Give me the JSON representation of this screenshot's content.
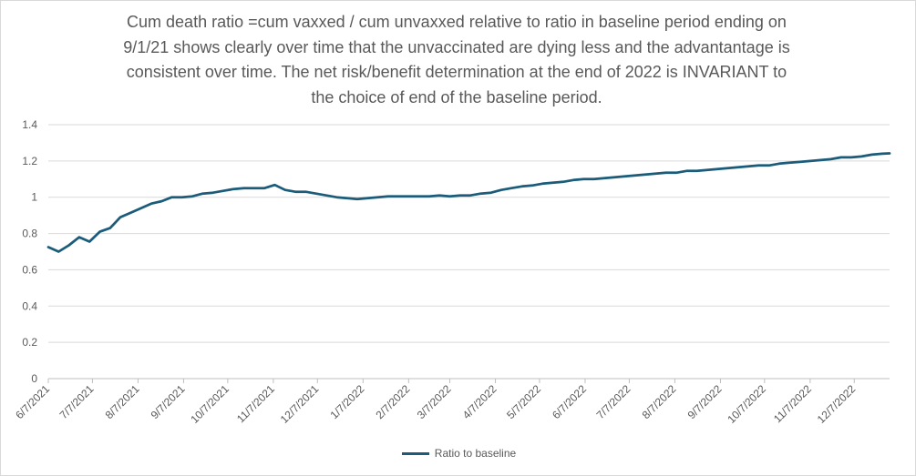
{
  "chart_data": {
    "type": "line",
    "title_lines": [
      "Cum death ratio =cum vaxxed / cum unvaxxed relative to ratio in baseline period ending on",
      "9/1/21 shows clearly over time that the unvaccinated are dying less and the advantantage is",
      "consistent over time. The net risk/benefit determination at the end of 2022 is INVARIANT to",
      "the choice of end of the baseline period."
    ],
    "xlabel": "",
    "ylabel": "",
    "ylim": [
      0,
      1.4
    ],
    "yticks": [
      "0",
      "0.2",
      "0.4",
      "0.6",
      "0.8",
      "1",
      "1.2",
      "1.4"
    ],
    "ytick_values": [
      0,
      0.2,
      0.4,
      0.6,
      0.8,
      1.0,
      1.2,
      1.4
    ],
    "x_tick_labels": [
      "6/7/2021",
      "7/7/2021",
      "8/7/2021",
      "9/7/2021",
      "10/7/2021",
      "11/7/2021",
      "12/7/2021",
      "1/7/2022",
      "2/7/2022",
      "3/7/2022",
      "4/7/2022",
      "5/7/2022",
      "6/7/2022",
      "7/7/2022",
      "8/7/2022",
      "9/7/2022",
      "10/7/2022",
      "11/7/2022",
      "12/7/2022"
    ],
    "x_tick_dates": [
      "2021-06-07",
      "2021-07-07",
      "2021-08-07",
      "2021-09-07",
      "2021-10-07",
      "2021-11-07",
      "2021-12-07",
      "2022-01-07",
      "2022-02-07",
      "2022-03-07",
      "2022-04-07",
      "2022-05-07",
      "2022-06-07",
      "2022-07-07",
      "2022-08-07",
      "2022-09-07",
      "2022-10-07",
      "2022-11-07",
      "2022-12-07"
    ],
    "x_range": [
      "2021-06-07",
      "2022-12-31"
    ],
    "grid": "horizontal",
    "legend_position": "bottom",
    "series": [
      {
        "name": "Ratio to baseline",
        "color": "#1a5c7a",
        "x": [
          "2021-06-07",
          "2021-06-14",
          "2021-06-21",
          "2021-06-28",
          "2021-07-05",
          "2021-07-12",
          "2021-07-19",
          "2021-07-26",
          "2021-08-02",
          "2021-08-09",
          "2021-08-16",
          "2021-08-23",
          "2021-08-30",
          "2021-09-06",
          "2021-09-13",
          "2021-09-20",
          "2021-09-27",
          "2021-10-04",
          "2021-10-11",
          "2021-10-18",
          "2021-10-25",
          "2021-11-01",
          "2021-11-08",
          "2021-11-15",
          "2021-11-22",
          "2021-11-29",
          "2021-12-06",
          "2021-12-13",
          "2021-12-20",
          "2021-12-27",
          "2022-01-03",
          "2022-01-10",
          "2022-01-17",
          "2022-01-24",
          "2022-01-31",
          "2022-02-07",
          "2022-02-14",
          "2022-02-21",
          "2022-02-28",
          "2022-03-07",
          "2022-03-14",
          "2022-03-21",
          "2022-03-28",
          "2022-04-04",
          "2022-04-11",
          "2022-04-18",
          "2022-04-25",
          "2022-05-02",
          "2022-05-09",
          "2022-05-16",
          "2022-05-23",
          "2022-05-30",
          "2022-06-06",
          "2022-06-13",
          "2022-06-20",
          "2022-06-27",
          "2022-07-04",
          "2022-07-11",
          "2022-07-18",
          "2022-07-25",
          "2022-08-01",
          "2022-08-08",
          "2022-08-15",
          "2022-08-22",
          "2022-08-29",
          "2022-09-05",
          "2022-09-12",
          "2022-09-19",
          "2022-09-26",
          "2022-10-03",
          "2022-10-10",
          "2022-10-17",
          "2022-10-24",
          "2022-10-31",
          "2022-11-07",
          "2022-11-14",
          "2022-11-21",
          "2022-11-28",
          "2022-12-05",
          "2022-12-12",
          "2022-12-19",
          "2022-12-26",
          "2022-12-31"
        ],
        "values": [
          0.725,
          0.7,
          0.735,
          0.78,
          0.755,
          0.81,
          0.83,
          0.89,
          0.915,
          0.94,
          0.965,
          0.978,
          1.0,
          1.0,
          1.005,
          1.02,
          1.025,
          1.035,
          1.045,
          1.05,
          1.05,
          1.05,
          1.068,
          1.04,
          1.03,
          1.03,
          1.02,
          1.01,
          1.0,
          0.995,
          0.99,
          0.995,
          1.0,
          1.005,
          1.005,
          1.005,
          1.005,
          1.005,
          1.01,
          1.005,
          1.01,
          1.01,
          1.02,
          1.025,
          1.04,
          1.05,
          1.06,
          1.065,
          1.075,
          1.08,
          1.085,
          1.095,
          1.1,
          1.1,
          1.105,
          1.11,
          1.115,
          1.12,
          1.125,
          1.13,
          1.135,
          1.135,
          1.145,
          1.145,
          1.15,
          1.155,
          1.16,
          1.165,
          1.17,
          1.175,
          1.175,
          1.185,
          1.19,
          1.195,
          1.2,
          1.205,
          1.21,
          1.22,
          1.22,
          1.225,
          1.235,
          1.24,
          1.242
        ]
      }
    ]
  }
}
